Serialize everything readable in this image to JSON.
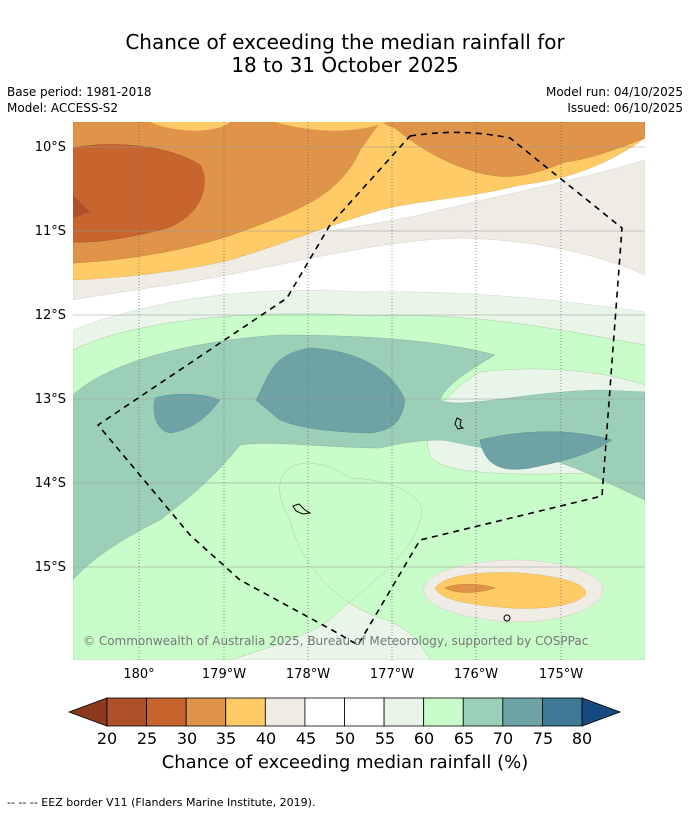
{
  "title": {
    "line1": "Chance of exceeding the median rainfall for",
    "line2": "18 to 31 October 2025"
  },
  "meta": {
    "base_period": "Base period: 1981-2018",
    "model": "Model: ACCESS-S2",
    "model_run": "Model run: 04/10/2025",
    "issued": "Issued: 06/10/2025"
  },
  "map": {
    "lat_labels": [
      "10°S",
      "11°S",
      "12°S",
      "13°S",
      "14°S",
      "15°S"
    ],
    "lon_labels": [
      "180°",
      "179°W",
      "178°W",
      "177°W",
      "176°W",
      "175°W"
    ],
    "copyright": "© Commonwealth of Australia 2025, Bureau of Meteorology, supported by COSPPac"
  },
  "colorbar": {
    "title": "Chance of exceeding median rainfall (%)",
    "ticks": [
      "20",
      "25",
      "30",
      "35",
      "40",
      "45",
      "50",
      "55",
      "60",
      "65",
      "70",
      "75",
      "80"
    ],
    "colors": [
      "#8b3a1e",
      "#b0502b",
      "#c8652f",
      "#e0944a",
      "#fecb66",
      "#efebe5",
      "#ffffff",
      "#ffffff",
      "#e8f5e8",
      "#c8fcc8",
      "#9ccfb8",
      "#6ea3a6",
      "#3e7a96",
      "#16497f"
    ]
  },
  "legend": {
    "eez_line_label": "--  --  -- EEZ border V11 (Flanders Marine Institute, 2019)."
  }
}
